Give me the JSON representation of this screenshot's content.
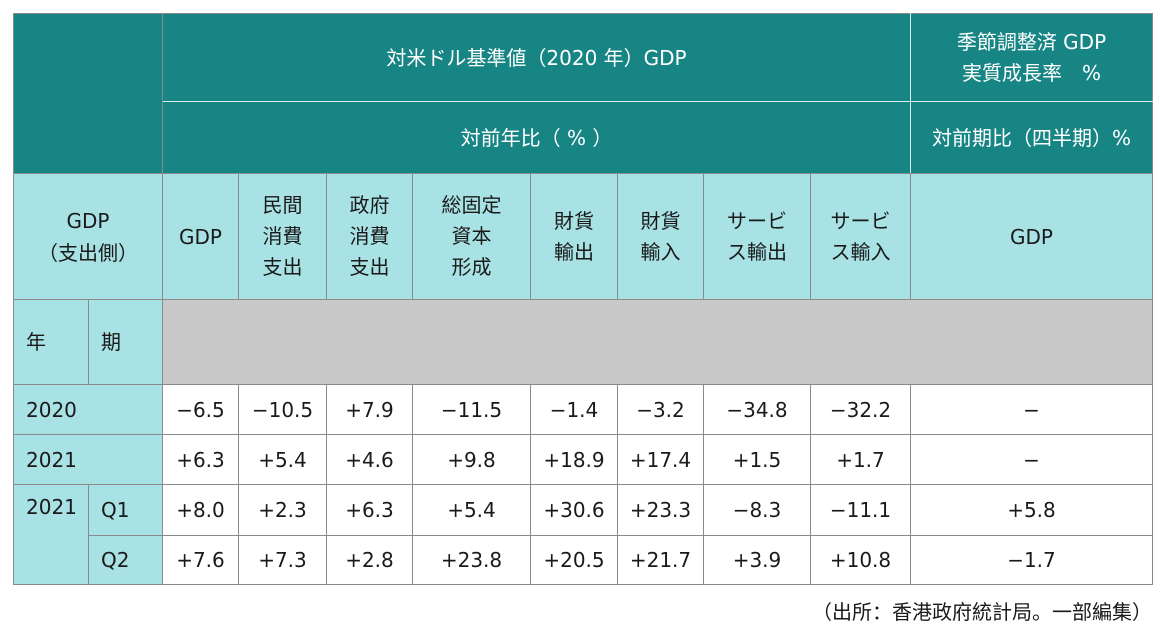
{
  "header": {
    "main_title": "対米ドル基準値（2020 年）GDP",
    "main_sub": "対前年比（ % ）",
    "right_title_line1": "季節調整済 GDP",
    "right_title_line2": "実質成長率　%",
    "right_sub": "対前期比（四半期）%"
  },
  "columns": {
    "stub_line1": "GDP",
    "stub_line2": "（支出側）",
    "c1": [
      "GDP"
    ],
    "c2": [
      "民間",
      "消費",
      "支出"
    ],
    "c3": [
      "政府",
      "消費",
      "支出"
    ],
    "c4": [
      "総固定",
      "資本",
      "形成"
    ],
    "c5": [
      "財貨",
      "輸出"
    ],
    "c6": [
      "財貨",
      "輸入"
    ],
    "c7": [
      "サービ",
      "ス輸出"
    ],
    "c8": [
      "サービ",
      "ス輸入"
    ],
    "c9": [
      "GDP"
    ]
  },
  "period_header": {
    "year": "年",
    "period": "期"
  },
  "rows": [
    {
      "year": "2020",
      "period": "",
      "values": [
        "−6.5",
        "−10.5",
        "+7.9",
        "−11.5",
        "−1.4",
        "−3.2",
        "−34.8",
        "−32.2",
        "−"
      ]
    },
    {
      "year": "2021",
      "period": "",
      "values": [
        "+6.3",
        "+5.4",
        "+4.6",
        "+9.8",
        "+18.9",
        "+17.4",
        "+1.5",
        "+1.7",
        "−"
      ]
    },
    {
      "year": "2021",
      "period": "Q1",
      "values": [
        "+8.0",
        "+2.3",
        "+6.3",
        "+5.4",
        "+30.6",
        "+23.3",
        "−8.3",
        "−11.1",
        "+5.8"
      ]
    },
    {
      "year": "",
      "period": "Q2",
      "values": [
        "+7.6",
        "+7.3",
        "+2.8",
        "+23.8",
        "+20.5",
        "+21.7",
        "+3.9",
        "+10.8",
        "−1.7"
      ]
    }
  ],
  "source": "（出所：香港政府統計局。一部編集）",
  "colors": {
    "header_dark": "#178584",
    "header_light": "#a8e2e4",
    "band_grey": "#c8c8c8"
  }
}
